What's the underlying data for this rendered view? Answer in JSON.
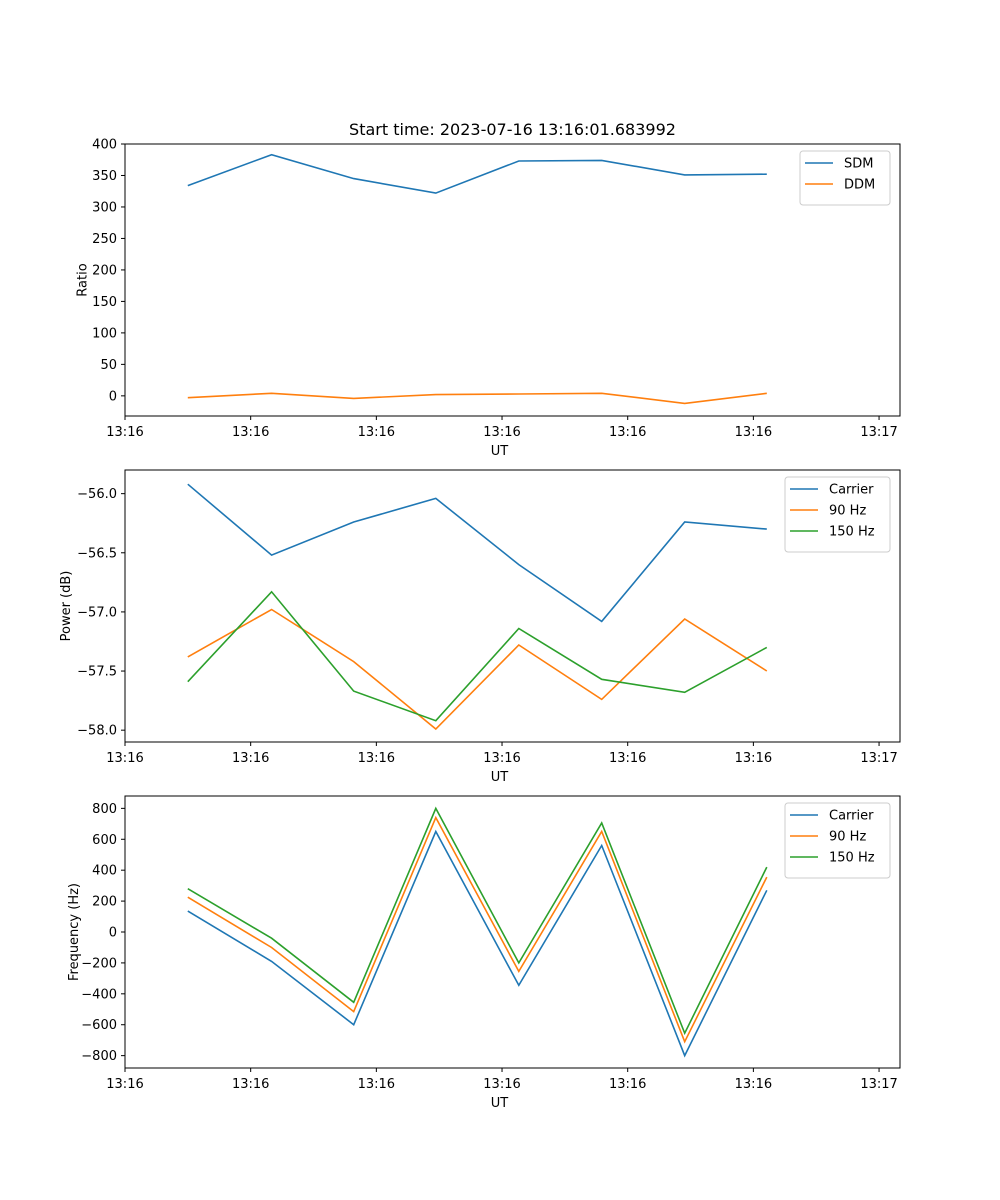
{
  "chart_data": [
    {
      "type": "line",
      "title": "Start time: 2023-07-16 13:16:01.683992",
      "xlabel": "UT",
      "ylabel": "Ratio",
      "xlim": [
        0,
        9.25
      ],
      "ylim": [
        -32,
        400
      ],
      "x": [
        0.75,
        1.75,
        2.73,
        3.71,
        4.7,
        5.69,
        6.68,
        7.66
      ],
      "xticks": [
        0,
        1.5,
        3,
        4.5,
        6,
        7.5,
        9
      ],
      "xtick_labels": [
        "13:16",
        "13:16",
        "13:16",
        "13:16",
        "13:16",
        "13:16",
        "13:17"
      ],
      "yticks": [
        0,
        50,
        100,
        150,
        200,
        250,
        300,
        350,
        400
      ],
      "ytick_labels": [
        "0",
        "50",
        "100",
        "150",
        "200",
        "250",
        "300",
        "350",
        "400"
      ],
      "legend_position": "top-right",
      "grid": false,
      "series": [
        {
          "name": "SDM",
          "color": "#1f77b4",
          "values": [
            334,
            383,
            345,
            322,
            373,
            374,
            351,
            352
          ]
        },
        {
          "name": "DDM",
          "color": "#ff7f0e",
          "values": [
            -3,
            4,
            -4,
            2,
            3,
            4,
            -12,
            4
          ]
        }
      ]
    },
    {
      "type": "line",
      "title": "",
      "xlabel": "UT",
      "ylabel": "Power (dB)",
      "xlim": [
        0,
        9.25
      ],
      "ylim": [
        -58.1,
        -55.8
      ],
      "x": [
        0.75,
        1.75,
        2.73,
        3.71,
        4.7,
        5.69,
        6.68,
        7.66
      ],
      "xticks": [
        0,
        1.5,
        3,
        4.5,
        6,
        7.5,
        9
      ],
      "xtick_labels": [
        "13:16",
        "13:16",
        "13:16",
        "13:16",
        "13:16",
        "13:16",
        "13:17"
      ],
      "yticks": [
        -58.0,
        -57.5,
        -57.0,
        -56.5,
        -56.0
      ],
      "ytick_labels": [
        "−58.0",
        "−57.5",
        "−57.0",
        "−56.5",
        "−56.0"
      ],
      "legend_position": "top-right",
      "grid": false,
      "series": [
        {
          "name": "Carrier",
          "color": "#1f77b4",
          "values": [
            -55.92,
            -56.52,
            -56.24,
            -56.04,
            -56.6,
            -57.08,
            -56.24,
            -56.3
          ]
        },
        {
          "name": "90 Hz",
          "color": "#ff7f0e",
          "values": [
            -57.38,
            -56.98,
            -57.42,
            -57.99,
            -57.28,
            -57.74,
            -57.06,
            -57.5
          ]
        },
        {
          "name": "150 Hz",
          "color": "#2ca02c",
          "values": [
            -57.59,
            -56.83,
            -57.67,
            -57.92,
            -57.14,
            -57.57,
            -57.68,
            -57.3
          ]
        }
      ]
    },
    {
      "type": "line",
      "title": "",
      "xlabel": "UT",
      "ylabel": "Frequency (Hz)",
      "xlim": [
        0,
        9.25
      ],
      "ylim": [
        -880,
        880
      ],
      "x": [
        0.75,
        1.75,
        2.73,
        3.71,
        4.7,
        5.69,
        6.68,
        7.66
      ],
      "xticks": [
        0,
        1.5,
        3,
        4.5,
        6,
        7.5,
        9
      ],
      "xtick_labels": [
        "13:16",
        "13:16",
        "13:16",
        "13:16",
        "13:16",
        "13:16",
        "13:17"
      ],
      "yticks": [
        -800,
        -600,
        -400,
        -200,
        0,
        200,
        400,
        600,
        800
      ],
      "ytick_labels": [
        "−800",
        "−600",
        "−400",
        "−200",
        "0",
        "200",
        "400",
        "600",
        "800"
      ],
      "legend_position": "top-right",
      "grid": false,
      "series": [
        {
          "name": "Carrier",
          "color": "#1f77b4",
          "values": [
            135,
            -190,
            -600,
            650,
            -345,
            560,
            -800,
            270
          ]
        },
        {
          "name": "90 Hz",
          "color": "#ff7f0e",
          "values": [
            225,
            -100,
            -515,
            740,
            -255,
            650,
            -710,
            355
          ]
        },
        {
          "name": "150 Hz",
          "color": "#2ca02c",
          "values": [
            280,
            -40,
            -455,
            800,
            -200,
            705,
            -655,
            420
          ]
        }
      ]
    }
  ]
}
